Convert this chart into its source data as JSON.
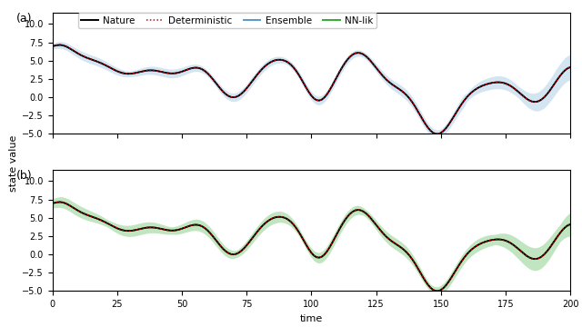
{
  "title_a": "(a)",
  "title_b": "(b)",
  "xlabel": "time",
  "ylabel": "state value",
  "xlim": [
    0,
    200
  ],
  "ylim_a": [
    -5.0,
    11.5
  ],
  "ylim_b": [
    -5.0,
    11.5
  ],
  "yticks": [
    -5.0,
    -2.5,
    0.0,
    2.5,
    5.0,
    7.5,
    10.0
  ],
  "xticks": [
    0,
    25,
    50,
    75,
    100,
    125,
    150,
    175,
    200
  ],
  "nature_color": "#000000",
  "deterministic_color": "#cc0000",
  "ensemble_color": "#5599cc",
  "nnlik_color": "#33aa33",
  "ensemble_fill_alpha": 0.25,
  "nnlik_fill_alpha": 0.3,
  "nature_lw": 1.3,
  "deterministic_lw": 1.1,
  "ensemble_lw": 1.3,
  "nnlik_lw": 1.3,
  "legend_fontsize": 7.5,
  "tick_fontsize": 7,
  "label_fontsize": 8,
  "panel_label_fontsize": 9
}
